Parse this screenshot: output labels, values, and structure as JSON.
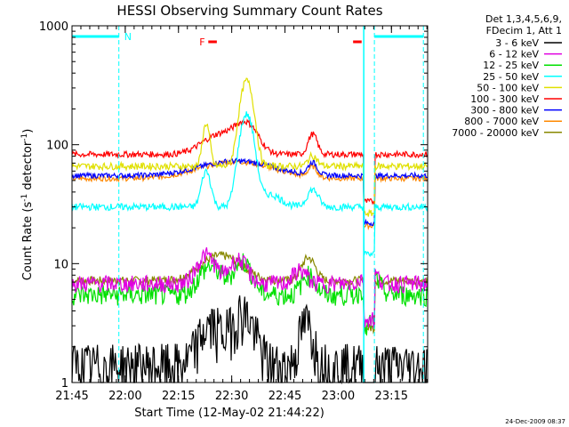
{
  "chart_data": {
    "type": "line",
    "title": "HESSI Observing Summary Count Rates",
    "xlabel": "Start Time (12-May-02 21:44:22)",
    "ylabel": "Count Rate (s^-1 detector^-1)",
    "ylabel_parts": {
      "main": "Count Rate (s",
      "sup1": "-1",
      "mid": " detector",
      "sup2": "-1",
      "end": ")"
    },
    "y_scale": "log",
    "ylim": [
      1,
      1000
    ],
    "y_ticks": [
      1,
      10,
      100,
      1000
    ],
    "y_tick_labels": [
      "1",
      "10",
      "100",
      "1000"
    ],
    "xlim": [
      21.75,
      23.42
    ],
    "x_ticks": [
      21.75,
      22.0,
      22.25,
      22.5,
      22.75,
      23.0,
      23.25
    ],
    "x_tick_labels": [
      "21:45",
      "22:00",
      "22:15",
      "22:30",
      "22:45",
      "23:00",
      "23:15"
    ],
    "legend_header": [
      "Det 1,3,4,5,6,9,",
      "FDecim 1, Att 1"
    ],
    "legend_placement": "outside-right",
    "series": [
      {
        "name": "3 - 6 keV",
        "color": "#000000",
        "base": 1.4,
        "noise": 0.3,
        "peaks": [
          [
            22.55,
            2.5,
            0.05
          ],
          [
            22.85,
            1.8,
            0.03
          ],
          [
            22.4,
            1.6,
            0.05
          ]
        ]
      },
      {
        "name": "6 - 12 keV",
        "color": "#e000e0",
        "base": 6.8,
        "noise": 0.1,
        "peaks": [
          [
            22.38,
            5.0,
            0.04
          ],
          [
            22.53,
            4.0,
            0.04
          ],
          [
            22.82,
            2.0,
            0.03
          ],
          [
            23.15,
            2.0,
            0.03
          ]
        ]
      },
      {
        "name": "12 - 25 keV",
        "color": "#00e000",
        "base": 5.5,
        "noise": 0.12,
        "peaks": [
          [
            22.4,
            4.0,
            0.05
          ],
          [
            22.55,
            5.0,
            0.04
          ],
          [
            22.86,
            2.5,
            0.03
          ],
          [
            23.16,
            2.5,
            0.03
          ]
        ]
      },
      {
        "name": "25 - 50 keV",
        "color": "#00ffff",
        "base": 30,
        "noise": 0.04,
        "peaks": [
          [
            22.38,
            30,
            0.02
          ],
          [
            22.57,
            150,
            0.03
          ],
          [
            22.88,
            12,
            0.025
          ],
          [
            22.68,
            8,
            0.05
          ]
        ]
      },
      {
        "name": "50 - 100 keV",
        "color": "#e0e000",
        "base": 66,
        "noise": 0.04,
        "peaks": [
          [
            22.38,
            85,
            0.015
          ],
          [
            22.57,
            280,
            0.028
          ],
          [
            22.88,
            15,
            0.02
          ]
        ]
      },
      {
        "name": "100 - 300 keV",
        "color": "#ff0000",
        "base": 83,
        "noise": 0.035,
        "peaks": [
          [
            22.45,
            40,
            0.08
          ],
          [
            22.57,
            60,
            0.05
          ],
          [
            22.88,
            40,
            0.02
          ]
        ]
      },
      {
        "name": "300 - 800 keV",
        "color": "#0000ff",
        "base": 55,
        "noise": 0.03,
        "peaks": [
          [
            22.52,
            18,
            0.16
          ],
          [
            22.88,
            15,
            0.02
          ]
        ]
      },
      {
        "name": "800 - 7000 keV",
        "color": "#ff8800",
        "base": 52,
        "noise": 0.03,
        "peaks": [
          [
            22.52,
            20,
            0.16
          ],
          [
            22.88,
            12,
            0.02
          ]
        ]
      },
      {
        "name": "7000 - 20000 keV",
        "color": "#888800",
        "base": 7.2,
        "noise": 0.05,
        "peaks": [
          [
            22.45,
            4.5,
            0.09
          ],
          [
            22.86,
            4.0,
            0.03
          ]
        ]
      }
    ],
    "annotations": {
      "N_label": "N",
      "F_label": "F",
      "night_intervals": [
        [
          21.75,
          21.97
        ],
        [
          23.17,
          23.4
        ]
      ],
      "saa_interval": [
        23.12,
        23.17
      ],
      "flare_intervals": [
        [
          22.39,
          22.43
        ],
        [
          23.07,
          23.11
        ]
      ]
    },
    "footer_date": "24-Dec-2009 08:37"
  }
}
